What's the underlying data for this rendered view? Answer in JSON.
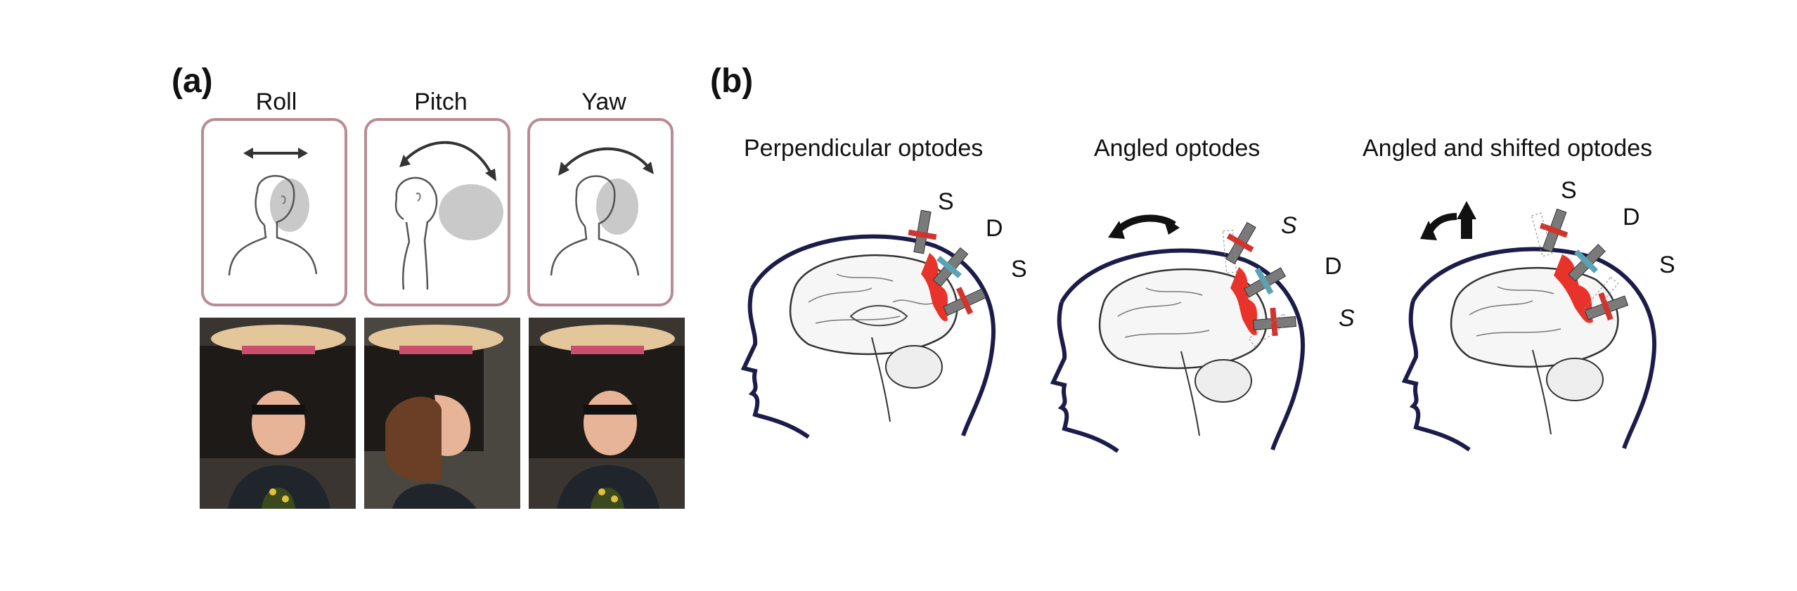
{
  "panel_a": {
    "label": "(a)",
    "motions": [
      {
        "title": "Roll",
        "icon": "roll-arrow-icon"
      },
      {
        "title": "Pitch",
        "icon": "pitch-arrow-icon"
      },
      {
        "title": "Yaw",
        "icon": "yaw-arrow-icon"
      }
    ]
  },
  "panel_b": {
    "label": "(b)",
    "conditions": [
      {
        "title": "Perpendicular optodes",
        "optodes": [
          "S",
          "D",
          "S"
        ]
      },
      {
        "title": "Angled optodes",
        "optodes": [
          "S",
          "D",
          "S"
        ]
      },
      {
        "title": "Angled and shifted optodes",
        "optodes": [
          "S",
          "D",
          "S"
        ]
      }
    ]
  },
  "colors": {
    "box_border": "#b98b95",
    "head_outline": "#1c1c4a",
    "cortex_highlight": "#e8332a",
    "source_marker": "#d0342c",
    "detector_marker": "#5aa3b5",
    "optode_body": "#7a7a7a"
  }
}
